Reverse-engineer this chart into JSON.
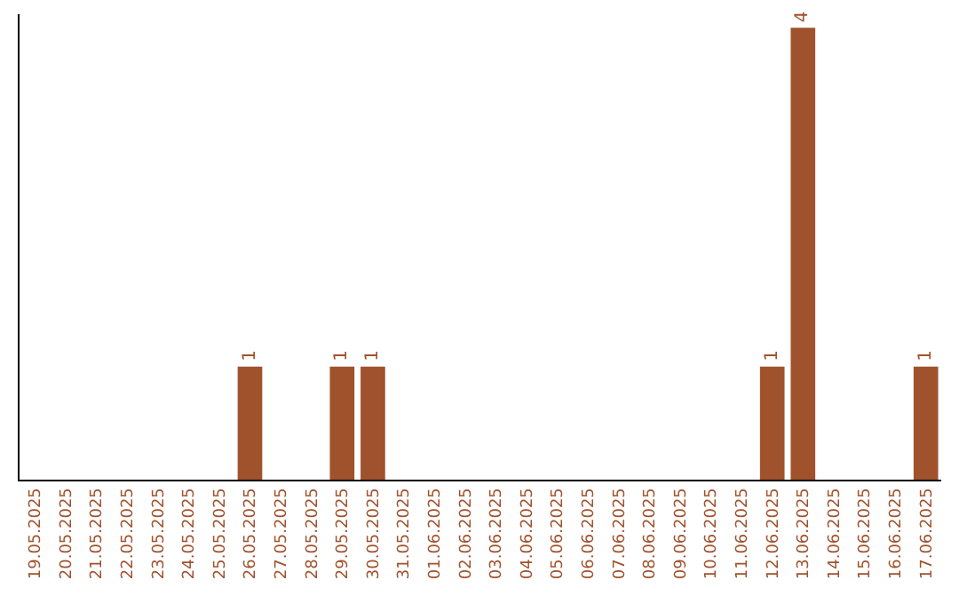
{
  "chart_data": {
    "type": "bar",
    "categories": [
      "19.05.2025",
      "20.05.2025",
      "21.05.2025",
      "22.05.2025",
      "23.05.2025",
      "24.05.2025",
      "25.05.2025",
      "26.05.2025",
      "27.05.2025",
      "28.05.2025",
      "29.05.2025",
      "30.05.2025",
      "31.05.2025",
      "01.06.2025",
      "02.06.2025",
      "03.06.2025",
      "04.06.2025",
      "05.06.2025",
      "06.06.2025",
      "07.06.2025",
      "08.06.2025",
      "09.06.2025",
      "10.06.2025",
      "11.06.2025",
      "12.06.2025",
      "13.06.2025",
      "14.06.2025",
      "15.06.2025",
      "16.06.2025",
      "17.06.2025"
    ],
    "values": [
      0,
      0,
      0,
      0,
      0,
      0,
      0,
      1,
      0,
      0,
      1,
      1,
      0,
      0,
      0,
      0,
      0,
      0,
      0,
      0,
      0,
      0,
      0,
      0,
      1,
      4,
      0,
      0,
      0,
      1
    ],
    "value_labels": [
      null,
      null,
      null,
      null,
      null,
      null,
      null,
      "1",
      null,
      null,
      "1",
      "1",
      null,
      null,
      null,
      null,
      null,
      null,
      null,
      null,
      null,
      null,
      null,
      null,
      "1",
      "4",
      null,
      null,
      null,
      "1"
    ],
    "color": "#a0522d",
    "tick_labels": "x",
    "legend": false
  }
}
